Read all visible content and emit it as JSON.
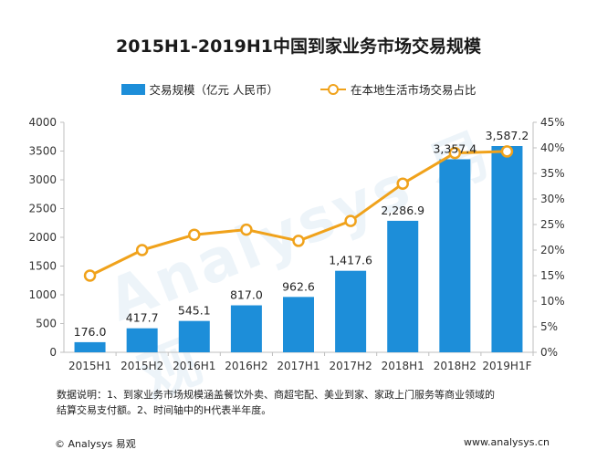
{
  "title": "2015H1-2019H1中国到家业务市场交易规模",
  "legend": {
    "bar_label": "交易规模（亿元 人民币）",
    "line_label": "在本地生活市场交易占比"
  },
  "watermark": "Analysys 易观",
  "colors": {
    "bar": "#1d8ed9",
    "line": "#f0a21b",
    "axis": "#bfbfbf",
    "text": "#333333"
  },
  "chart_data": {
    "type": "bar",
    "title": "2015H1-2019H1中国到家业务市场交易规模",
    "categories": [
      "2015H1",
      "2015H2",
      "2016H1",
      "2016H2",
      "2017H1",
      "2017H2",
      "2018H1",
      "2018H2",
      "2019H1F"
    ],
    "series": [
      {
        "name": "交易规模（亿元 人民币）",
        "type": "bar",
        "axis": "left",
        "values": [
          176.0,
          417.7,
          545.1,
          817.0,
          962.6,
          1417.6,
          2286.9,
          3357.4,
          3587.2
        ],
        "labels": [
          "176.0",
          "417.7",
          "545.1",
          "817.0",
          "962.6",
          "1,417.6",
          "2,286.9",
          "3,357.4",
          "3,587.2"
        ]
      },
      {
        "name": "在本地生活市场交易占比",
        "type": "line",
        "axis": "right",
        "values": [
          15.0,
          20.0,
          23.0,
          24.0,
          21.8,
          25.7,
          33.0,
          39.0,
          39.3
        ]
      }
    ],
    "y_left": {
      "ylim": [
        0,
        4000
      ],
      "ticks": [
        "0",
        "500",
        "1000",
        "1500",
        "2000",
        "2500",
        "3000",
        "3500",
        "4000"
      ]
    },
    "y_right": {
      "ylim": [
        0,
        45
      ],
      "ticks": [
        "0%",
        "5%",
        "10%",
        "15%",
        "20%",
        "25%",
        "30%",
        "35%",
        "40%",
        "45%"
      ]
    }
  },
  "notes": {
    "line1": "数据说明：1、到家业务市场规模涵盖餐饮外卖、商超宅配、美业到家、家政上门服务等商业领域的",
    "line2": "结算交易支付额。2、时间轴中的H代表半年度。"
  },
  "footer": {
    "copyright": "© Analysys 易观",
    "site": "www.analysys.cn"
  }
}
